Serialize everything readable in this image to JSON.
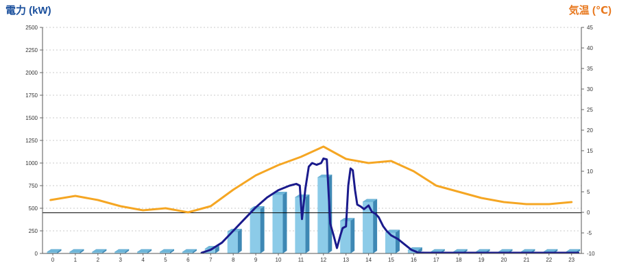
{
  "chart_data": {
    "type": "bar",
    "left_axis_title": "電力 (kW)",
    "right_axis_title": "気温 (℃)",
    "categories": [
      "0",
      "1",
      "2",
      "3",
      "4",
      "5",
      "6",
      "7",
      "8",
      "9",
      "10",
      "11",
      "12",
      "13",
      "14",
      "15",
      "16",
      "17",
      "18",
      "19",
      "20",
      "21",
      "22",
      "23"
    ],
    "y_left": {
      "min": 0,
      "max": 2500,
      "ticks": [
        "0",
        "250",
        "500",
        "750",
        "1000",
        "1250",
        "1500",
        "1750",
        "2000",
        "2250",
        "2500"
      ]
    },
    "y_right": {
      "min": -10,
      "max": 45,
      "ticks": [
        "-10",
        "-5",
        "0",
        "5",
        "10",
        "15",
        "20",
        "25",
        "30",
        "35",
        "40",
        "45"
      ]
    },
    "grid": true,
    "bars": {
      "axis": "left",
      "color": "#8ccbe8",
      "values": [
        0,
        0,
        0,
        0,
        0,
        0,
        0,
        50,
        240,
        490,
        650,
        620,
        840,
        360,
        570,
        230,
        35,
        0,
        0,
        0,
        0,
        0,
        0,
        0
      ]
    },
    "power_line": {
      "axis": "left",
      "color": "#1a1a8c",
      "x": [
        6.6,
        7,
        7.5,
        8,
        8.5,
        9,
        9.5,
        10,
        10.5,
        10.8,
        10.95,
        11.05,
        11.2,
        11.35,
        11.5,
        11.7,
        11.9,
        12,
        12.15,
        12.3,
        12.45,
        12.6,
        12.75,
        12.85,
        13,
        13.1,
        13.2,
        13.3,
        13.4,
        13.5,
        13.65,
        13.8,
        14,
        14.15,
        14.3,
        14.45,
        14.55,
        14.65,
        14.8,
        15,
        15.3,
        15.6,
        15.9,
        16.2,
        16.5,
        23.3
      ],
      "values": [
        0,
        40,
        120,
        250,
        380,
        510,
        620,
        700,
        750,
        770,
        750,
        380,
        720,
        960,
        1000,
        980,
        1000,
        1050,
        1040,
        330,
        200,
        60,
        200,
        280,
        300,
        750,
        940,
        920,
        700,
        540,
        520,
        490,
        530,
        460,
        440,
        400,
        350,
        300,
        250,
        200,
        160,
        100,
        40,
        10,
        0,
        0
      ]
    },
    "threshold_line": {
      "axis": "left",
      "value": 450,
      "color": "#000000"
    },
    "temperature_line": {
      "axis": "right",
      "color": "#f5a623",
      "x": [
        -0.1,
        1,
        2,
        3,
        4,
        5,
        6,
        7,
        8,
        9,
        10,
        11,
        12,
        13,
        14,
        15,
        16,
        17,
        18,
        19,
        20,
        21,
        22,
        23
      ],
      "values": [
        3,
        4,
        3,
        1.5,
        0.5,
        1,
        0,
        1.5,
        5.5,
        9,
        11.5,
        13.5,
        16,
        13,
        12,
        12.5,
        10,
        6.5,
        5,
        3.5,
        2.5,
        2,
        2,
        2.5
      ]
    }
  }
}
